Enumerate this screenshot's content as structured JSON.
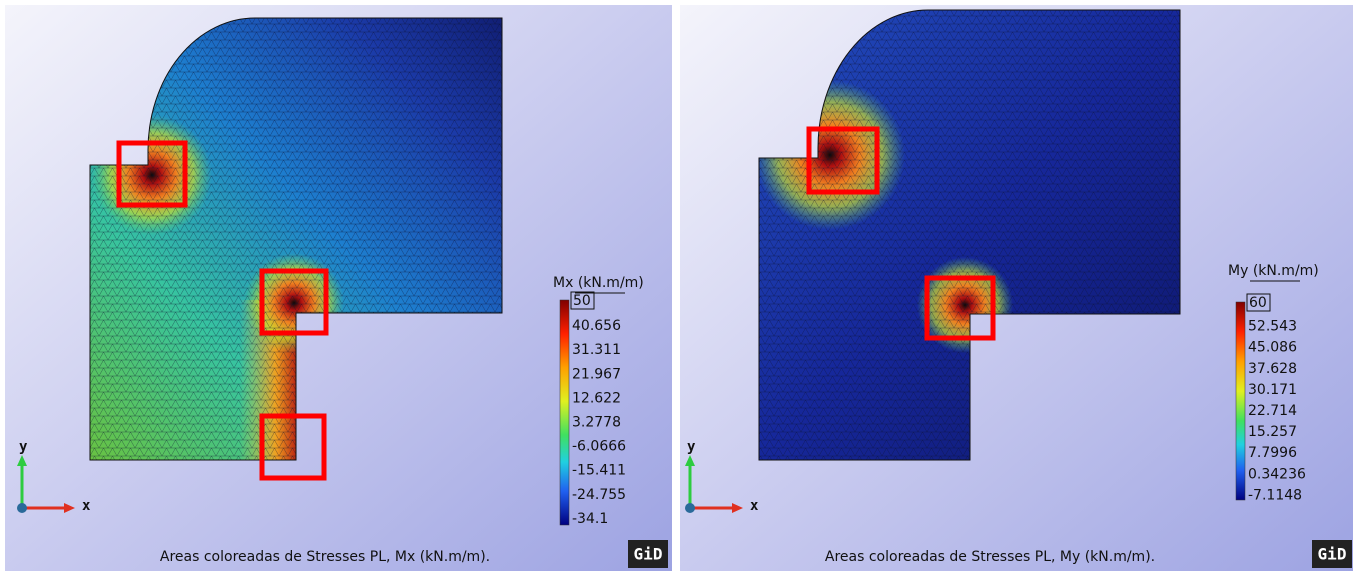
{
  "panels": [
    {
      "legend_title": "Mx (kN.m/m)",
      "legend_max": "50",
      "legend_labels": [
        "40.656",
        "31.311",
        "21.967",
        "12.622",
        "3.2778",
        "-6.0666",
        "-15.411",
        "-24.755",
        "-34.1"
      ],
      "axis_y": "y",
      "axis_x": "x",
      "caption": "Areas coloreadas de Stresses PL, Mx (kN.m/m).",
      "logo": "GiD"
    },
    {
      "legend_title": "My (kN.m/m)",
      "legend_max": "60",
      "legend_labels": [
        "52.543",
        "45.086",
        "37.628",
        "30.171",
        "22.714",
        "15.257",
        "7.7996",
        "0.34236",
        "-7.1148"
      ],
      "axis_y": "y",
      "axis_x": "x",
      "caption": "Areas coloreadas de Stresses PL, My (kN.m/m).",
      "logo": "GiD"
    }
  ]
}
